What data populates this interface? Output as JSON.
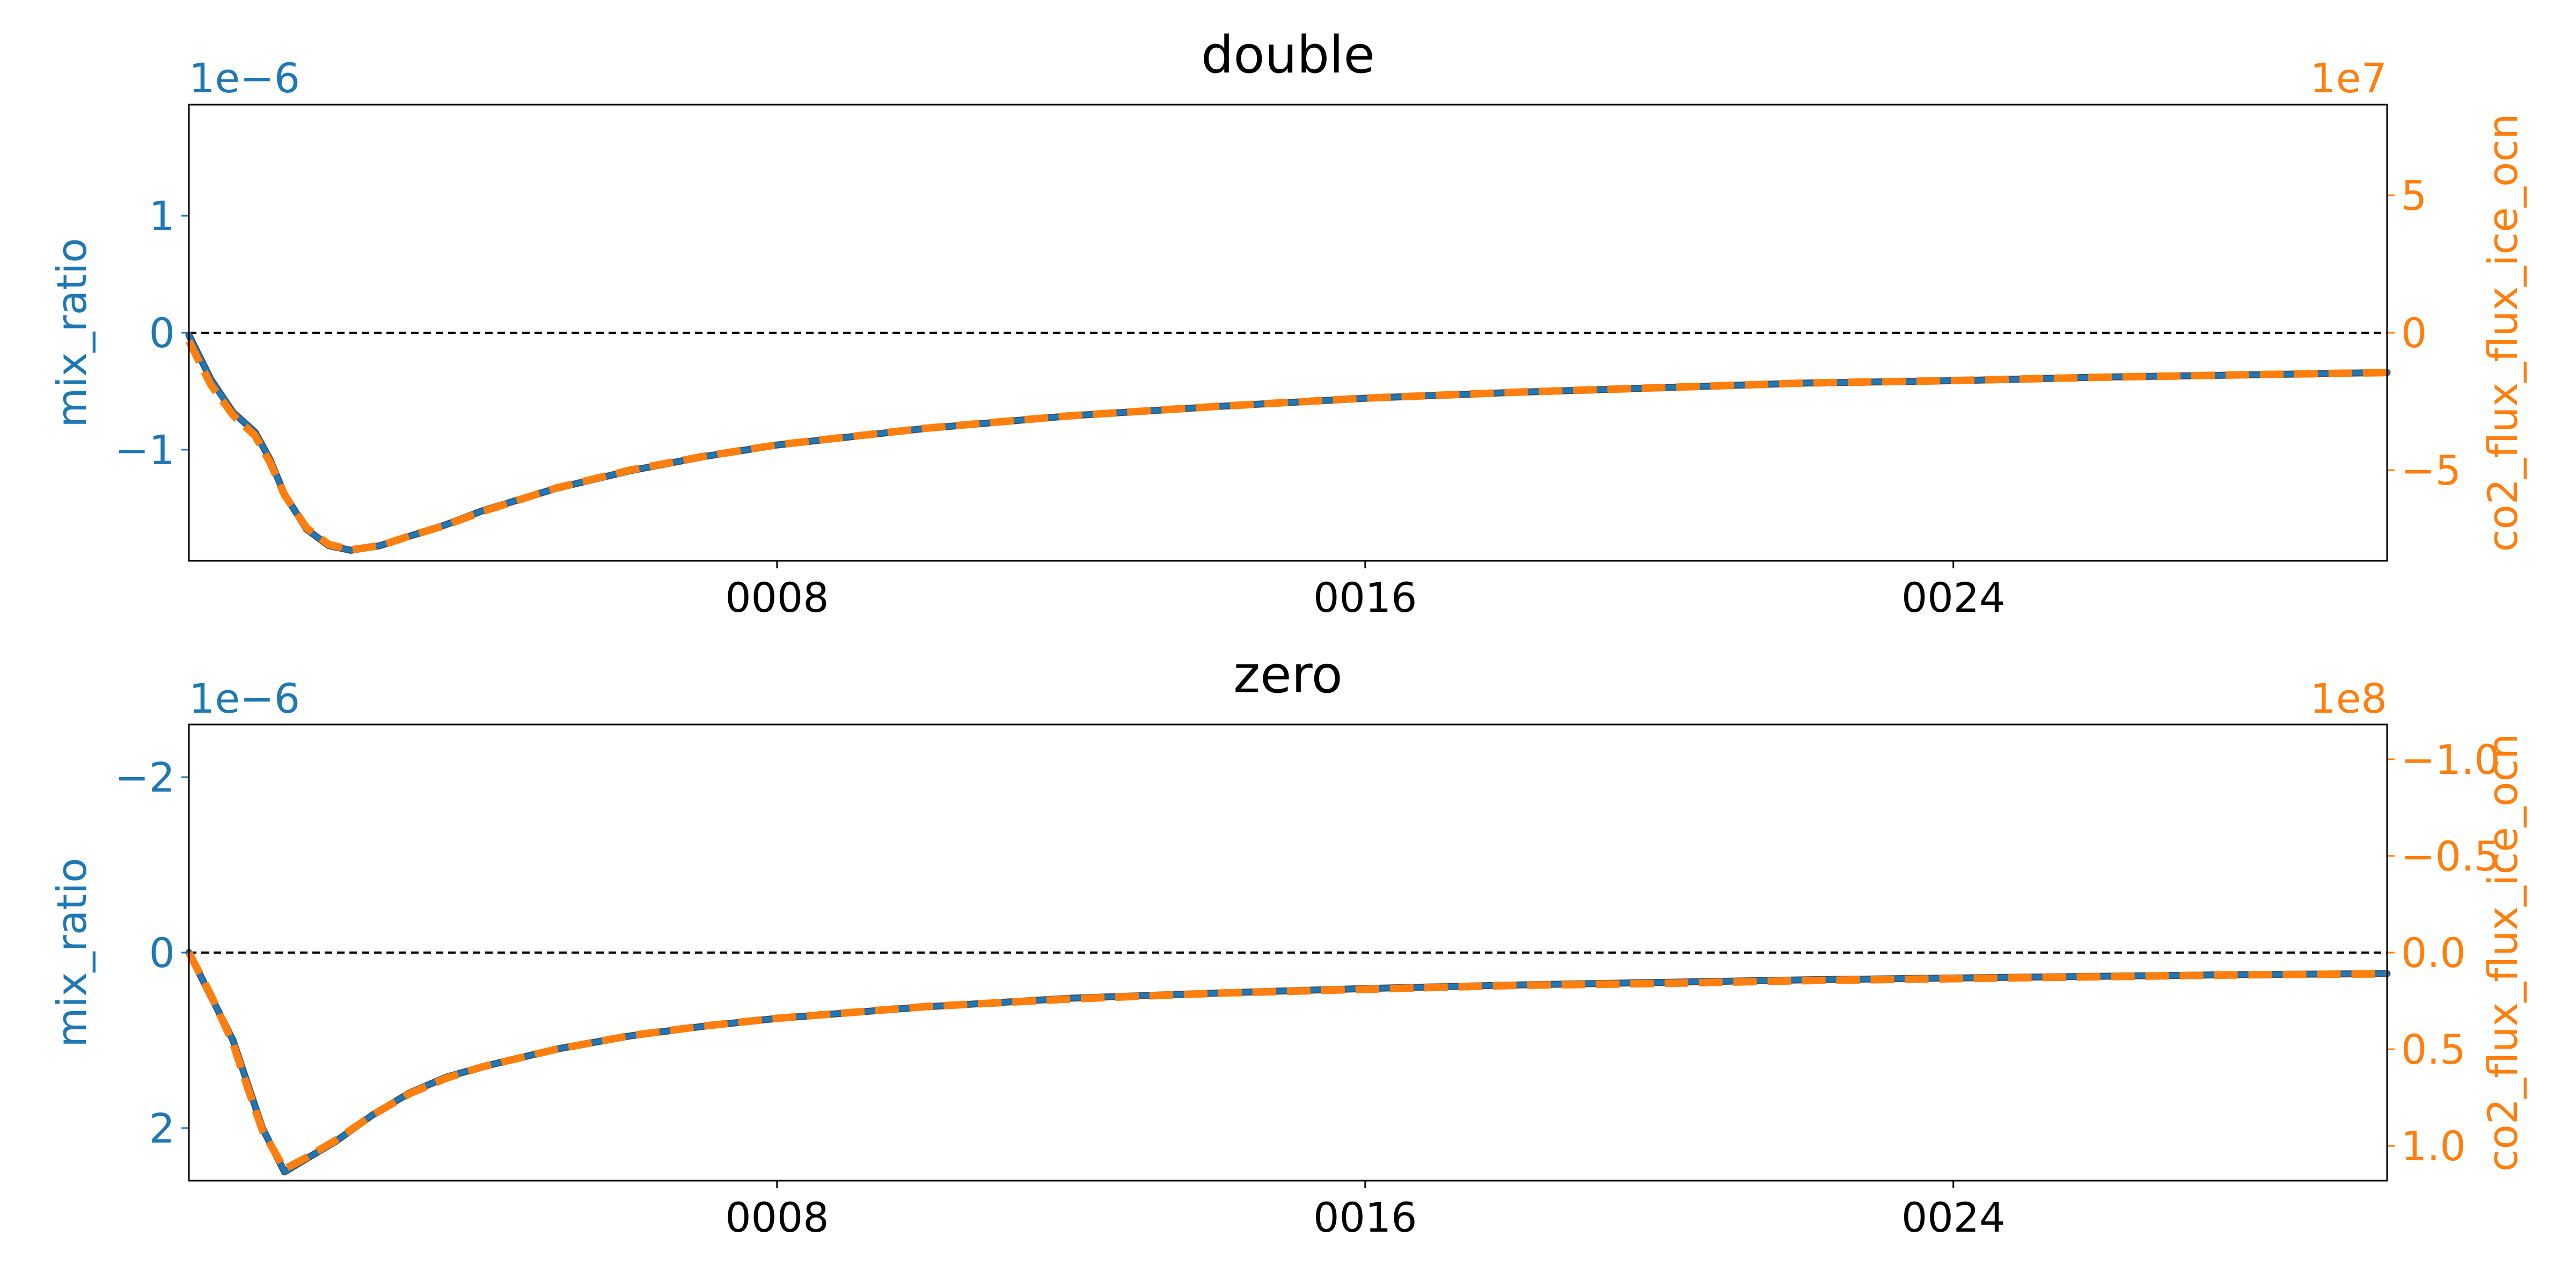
{
  "colors": {
    "left_axis": "#1f77b4",
    "right_axis": "#ff7f0e",
    "zero_line": "#000000",
    "frame": "#000000",
    "text": "#000000"
  },
  "chart_data": [
    {
      "type": "line",
      "title": "double",
      "xlabel": "",
      "x_ticks": [
        "0008",
        "0016",
        "0024"
      ],
      "x_tick_positions": [
        8,
        16,
        24
      ],
      "xlim": [
        0,
        29.9
      ],
      "left_axis": {
        "label": "mix_ratio",
        "offset_text": "1e−6",
        "ylim": [
          -1.95,
          1.95
        ],
        "inverted": false,
        "ticks": [
          1,
          0,
          -1
        ],
        "tick_labels": [
          "1",
          "0",
          "−1"
        ]
      },
      "right_axis": {
        "label": "co2_flux_flux_ice_ocn",
        "offset_text": "1e7",
        "ylim": [
          -8.3,
          8.3
        ],
        "inverted": false,
        "ticks": [
          5,
          0,
          -5
        ],
        "tick_labels": [
          "5",
          "0",
          "−5"
        ]
      },
      "zero_line": 0,
      "series": [
        {
          "axis": "left",
          "style": "solid",
          "x": [
            0,
            0.3,
            0.6,
            0.9,
            1.1,
            1.3,
            1.6,
            1.9,
            2.2,
            2.6,
            3.0,
            3.5,
            4.0,
            5.0,
            6.0,
            7.0,
            8.0,
            10.0,
            12.0,
            14.0,
            16.0,
            18.0,
            20.0,
            22.0,
            24.0,
            26.0,
            28.0,
            29.9
          ],
          "y": [
            -0.02,
            -0.4,
            -0.68,
            -0.85,
            -1.08,
            -1.38,
            -1.68,
            -1.82,
            -1.86,
            -1.82,
            -1.74,
            -1.64,
            -1.52,
            -1.33,
            -1.18,
            -1.06,
            -0.96,
            -0.82,
            -0.71,
            -0.63,
            -0.56,
            -0.51,
            -0.47,
            -0.43,
            -0.41,
            -0.38,
            -0.36,
            -0.34
          ]
        },
        {
          "axis": "right",
          "style": "dashed",
          "x": [
            0,
            0.3,
            0.6,
            0.9,
            1.1,
            1.3,
            1.6,
            1.9,
            2.2,
            2.6,
            3.0,
            3.5,
            4.0,
            5.0,
            6.0,
            7.0,
            8.0,
            10.0,
            12.0,
            14.0,
            16.0,
            18.0,
            20.0,
            22.0,
            24.0,
            26.0,
            28.0,
            29.9
          ],
          "y": [
            -0.3,
            -1.9,
            -3.0,
            -3.75,
            -4.7,
            -5.9,
            -7.1,
            -7.7,
            -7.9,
            -7.75,
            -7.4,
            -7.0,
            -6.5,
            -5.65,
            -5.0,
            -4.5,
            -4.08,
            -3.48,
            -3.02,
            -2.68,
            -2.38,
            -2.17,
            -2.0,
            -1.83,
            -1.74,
            -1.62,
            -1.53,
            -1.45
          ]
        }
      ]
    },
    {
      "type": "line",
      "title": "zero",
      "xlabel": "",
      "x_ticks": [
        "0008",
        "0016",
        "0024"
      ],
      "x_tick_positions": [
        8,
        16,
        24
      ],
      "xlim": [
        0,
        29.9
      ],
      "left_axis": {
        "label": "mix_ratio",
        "offset_text": "1e−6",
        "ylim": [
          2.6,
          -2.6
        ],
        "inverted": true,
        "ticks": [
          -2,
          0,
          2
        ],
        "tick_labels": [
          "−2",
          "0",
          "2"
        ]
      },
      "right_axis": {
        "label": "co2_flux_flux_ice_ocn",
        "offset_text": "1e8",
        "ylim": [
          1.18,
          -1.18
        ],
        "inverted": true,
        "ticks": [
          -1.0,
          -0.5,
          0.0,
          0.5,
          1.0
        ],
        "tick_labels": [
          "−1.0",
          "−0.5",
          "0.0",
          "0.5",
          "1.0"
        ]
      },
      "zero_line": 0,
      "series": [
        {
          "axis": "left",
          "style": "solid",
          "x": [
            0,
            0.3,
            0.6,
            0.8,
            1.0,
            1.3,
            1.6,
            2.0,
            2.5,
            3.0,
            3.5,
            4.0,
            5.0,
            6.0,
            7.0,
            8.0,
            10.0,
            12.0,
            14.0,
            16.0,
            18.0,
            20.0,
            22.0,
            24.0,
            26.0,
            28.0,
            29.9
          ],
          "y": [
            0,
            0.5,
            1.0,
            1.5,
            2.0,
            2.5,
            2.35,
            2.15,
            1.85,
            1.6,
            1.42,
            1.3,
            1.1,
            0.95,
            0.84,
            0.75,
            0.62,
            0.52,
            0.46,
            0.41,
            0.37,
            0.34,
            0.31,
            0.29,
            0.27,
            0.25,
            0.24
          ]
        },
        {
          "axis": "right",
          "style": "dashed",
          "x": [
            0,
            0.3,
            0.6,
            0.8,
            1.0,
            1.3,
            1.6,
            2.0,
            2.5,
            3.0,
            3.5,
            4.0,
            5.0,
            6.0,
            7.0,
            8.0,
            10.0,
            12.0,
            14.0,
            16.0,
            18.0,
            20.0,
            22.0,
            24.0,
            26.0,
            28.0,
            29.9
          ],
          "y": [
            0.0,
            0.22,
            0.47,
            0.7,
            0.92,
            1.12,
            1.06,
            0.97,
            0.84,
            0.73,
            0.65,
            0.59,
            0.5,
            0.43,
            0.38,
            0.34,
            0.28,
            0.24,
            0.21,
            0.19,
            0.17,
            0.16,
            0.145,
            0.135,
            0.125,
            0.115,
            0.11
          ]
        }
      ]
    }
  ]
}
